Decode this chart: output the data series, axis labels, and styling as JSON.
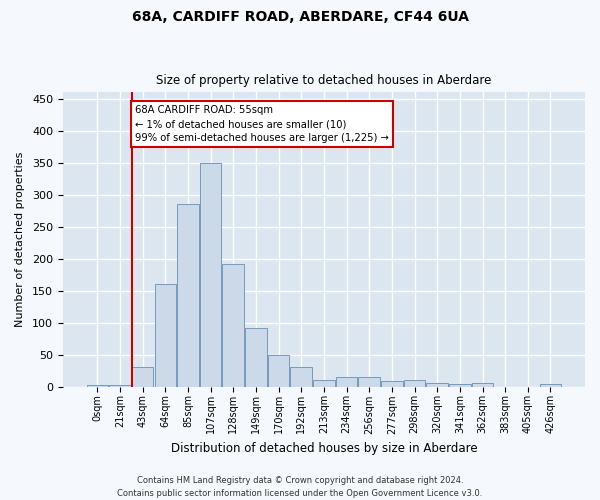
{
  "title_line1": "68A, CARDIFF ROAD, ABERDARE, CF44 6UA",
  "title_line2": "Size of property relative to detached houses in Aberdare",
  "xlabel": "Distribution of detached houses by size in Aberdare",
  "ylabel": "Number of detached properties",
  "bar_labels": [
    "0sqm",
    "21sqm",
    "43sqm",
    "64sqm",
    "85sqm",
    "107sqm",
    "128sqm",
    "149sqm",
    "170sqm",
    "192sqm",
    "213sqm",
    "234sqm",
    "256sqm",
    "277sqm",
    "298sqm",
    "320sqm",
    "341sqm",
    "362sqm",
    "383sqm",
    "405sqm",
    "426sqm"
  ],
  "bar_heights": [
    2,
    2,
    30,
    160,
    285,
    350,
    192,
    92,
    50,
    30,
    10,
    15,
    15,
    8,
    10,
    5,
    4,
    5,
    0,
    0,
    4
  ],
  "bar_color": "#ccd9e8",
  "bar_edge_color": "#7799bb",
  "fig_bg_color": "#f5f8fc",
  "axes_bg_color": "#dce6f0",
  "grid_color": "#ffffff",
  "annotation_text": "68A CARDIFF ROAD: 55sqm\n← 1% of detached houses are smaller (10)\n99% of semi-detached houses are larger (1,225) →",
  "annotation_box_facecolor": "#ffffff",
  "annotation_box_edge": "#cc0000",
  "vline_color": "#cc0000",
  "vline_pos": 1.52,
  "ylim": [
    0,
    460
  ],
  "yticks": [
    0,
    50,
    100,
    150,
    200,
    250,
    300,
    350,
    400,
    450
  ],
  "footer_line1": "Contains HM Land Registry data © Crown copyright and database right 2024.",
  "footer_line2": "Contains public sector information licensed under the Open Government Licence v3.0."
}
